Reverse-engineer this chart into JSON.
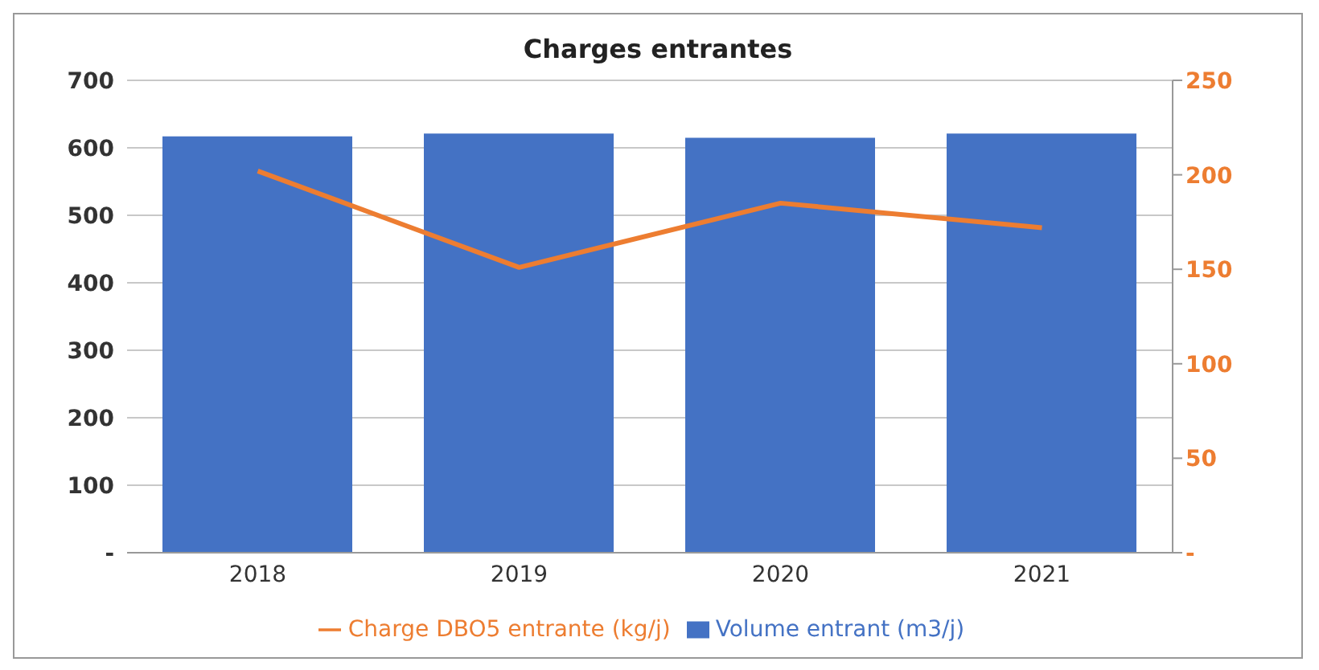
{
  "chart_data": {
    "type": "bar",
    "title": "Charges entrantes",
    "categories": [
      "2018",
      "2019",
      "2020",
      "2021"
    ],
    "series": [
      {
        "name": "Volume entrant (m3/j)",
        "color": "#4472c4",
        "values": [
          617,
          621,
          615,
          621
        ]
      },
      {
        "name": "Charge DBO5 entrante (kg/j)",
        "color": "#ed7d31",
        "type": "line",
        "axis": "y2",
        "values": [
          202,
          151,
          185,
          172
        ]
      }
    ],
    "ylim": [
      0,
      700
    ],
    "yticks": [
      {
        "value": 0,
        "label": "-"
      },
      100,
      200,
      300,
      400,
      500,
      600,
      700
    ],
    "y2lim": [
      0,
      250
    ],
    "y2ticks": [
      {
        "value": 0,
        "label": "-"
      },
      50,
      100,
      150,
      200,
      250
    ],
    "grid": "y",
    "legend": "bottom",
    "marker": "none"
  }
}
